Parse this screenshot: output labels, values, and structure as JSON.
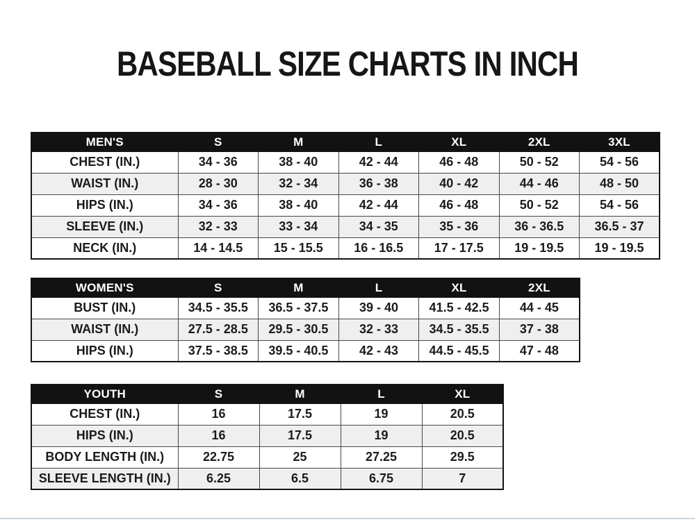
{
  "page": {
    "title": "BASEBALL SIZE CHARTS IN INCH"
  },
  "colors": {
    "header_bg": "#121212",
    "header_text": "#ffffff",
    "row_alt_bg": "#efefef",
    "border": "#474747",
    "text": "#1b1b1b"
  },
  "tables": [
    {
      "name": "mens",
      "header": [
        "MEN'S",
        "S",
        "M",
        "L",
        "XL",
        "2XL",
        "3XL"
      ],
      "rows": [
        {
          "label": "CHEST (IN.)",
          "values": [
            "34 - 36",
            "38 - 40",
            "42 - 44",
            "46 - 48",
            "50 - 52",
            "54 - 56"
          ]
        },
        {
          "label": "WAIST (IN.)",
          "values": [
            "28 - 30",
            "32 - 34",
            "36 - 38",
            "40 - 42",
            "44 - 46",
            "48 - 50"
          ]
        },
        {
          "label": "HIPS (IN.)",
          "values": [
            "34 - 36",
            "38 - 40",
            "42 - 44",
            "46 - 48",
            "50 - 52",
            "54 - 56"
          ]
        },
        {
          "label": "SLEEVE (IN.)",
          "values": [
            "32 - 33",
            "33 - 34",
            "34 - 35",
            "35 - 36",
            "36 - 36.5",
            "36.5 - 37"
          ]
        },
        {
          "label": "NECK (IN.)",
          "values": [
            "14 - 14.5",
            "15 - 15.5",
            "16 - 16.5",
            "17 - 17.5",
            "19 - 19.5",
            "19 - 19.5"
          ]
        }
      ]
    },
    {
      "name": "womens",
      "header": [
        "WOMEN'S",
        "S",
        "M",
        "L",
        "XL",
        "2XL"
      ],
      "rows": [
        {
          "label": "BUST (IN.)",
          "values": [
            "34.5 - 35.5",
            "36.5 - 37.5",
            "39 - 40",
            "41.5 - 42.5",
            "44 - 45"
          ]
        },
        {
          "label": "WAIST (IN.)",
          "values": [
            "27.5 - 28.5",
            "29.5 - 30.5",
            "32 - 33",
            "34.5 - 35.5",
            "37 - 38"
          ]
        },
        {
          "label": "HIPS (IN.)",
          "values": [
            "37.5 - 38.5",
            "39.5 - 40.5",
            "42 - 43",
            "44.5 - 45.5",
            "47 - 48"
          ]
        }
      ]
    },
    {
      "name": "youth",
      "header": [
        "YOUTH",
        "S",
        "M",
        "L",
        "XL"
      ],
      "rows": [
        {
          "label": "CHEST (IN.)",
          "values": [
            "16",
            "17.5",
            "19",
            "20.5"
          ]
        },
        {
          "label": "HIPS (IN.)",
          "values": [
            "16",
            "17.5",
            "19",
            "20.5"
          ]
        },
        {
          "label": "BODY LENGTH (IN.)",
          "values": [
            "22.75",
            "25",
            "27.25",
            "29.5"
          ]
        },
        {
          "label": "SLEEVE LENGTH (IN.)",
          "values": [
            "6.25",
            "6.5",
            "6.75",
            "7"
          ]
        }
      ]
    }
  ]
}
